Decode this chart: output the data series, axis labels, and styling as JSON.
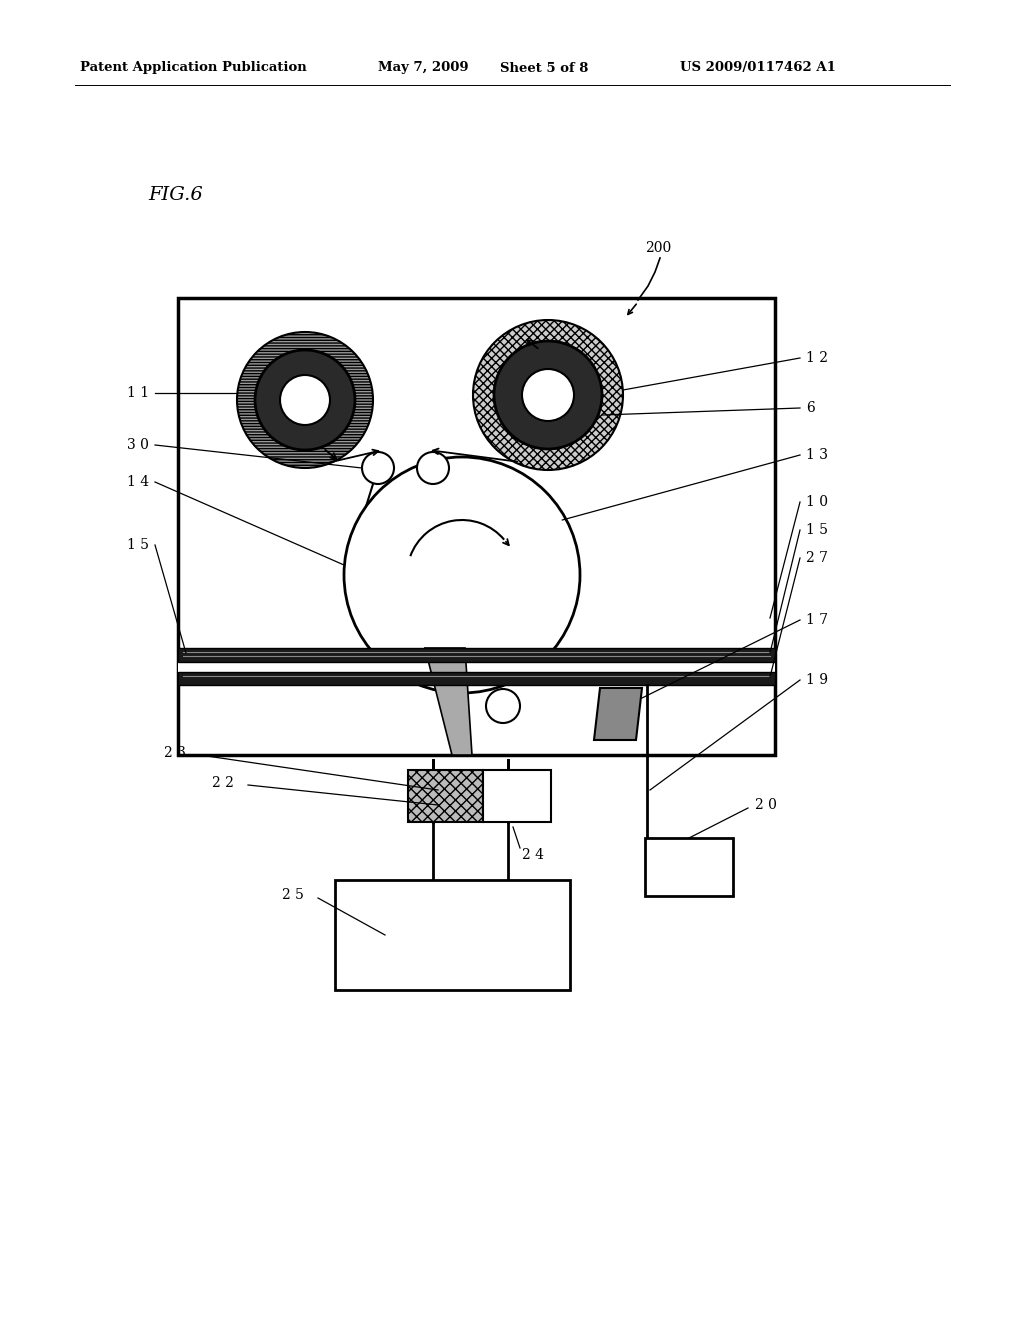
{
  "bg_color": "#ffffff",
  "header_text": "Patent Application Publication",
  "header_date": "May 7, 2009",
  "header_sheet": "Sheet 5 of 8",
  "header_patent": "US 2009/0117462 A1",
  "fig_label": "FIG.6"
}
